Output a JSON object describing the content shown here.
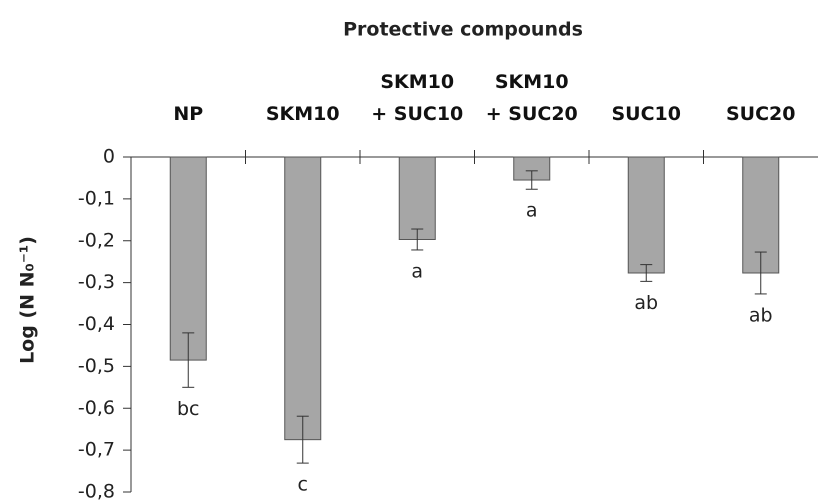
{
  "chart_data": {
    "type": "bar",
    "title": "Protective compounds",
    "y_label": "Log (N N₀⁻¹)",
    "categories": [
      "NP",
      "SKM10",
      "SKM10\n+ SUC10",
      "SKM10\n+ SUC20",
      "SUC10",
      "SUC20"
    ],
    "values": [
      -0.485,
      -0.675,
      -0.197,
      -0.055,
      -0.277,
      -0.277
    ],
    "errors": [
      0.065,
      0.056,
      0.025,
      0.022,
      0.02,
      0.05
    ],
    "letters": [
      "bc",
      "c",
      "a",
      "a",
      "ab",
      "ab"
    ],
    "color": "#a6a6a6",
    "ylim": [
      -0.8,
      0
    ],
    "yticks": [
      0,
      {
        "value": -0.1,
        "label": "-0,1"
      },
      {
        "value": -0.2,
        "label": "-0,2"
      },
      {
        "value": -0.3,
        "label": "-0,3"
      },
      {
        "value": -0.4,
        "label": "-0,4"
      },
      {
        "value": -0.5,
        "label": "-0,5"
      },
      {
        "value": -0.6,
        "label": "-0,6"
      },
      {
        "value": -0.7,
        "label": "-0,7"
      },
      {
        "value": -0.8,
        "label": "-0,8"
      }
    ]
  }
}
